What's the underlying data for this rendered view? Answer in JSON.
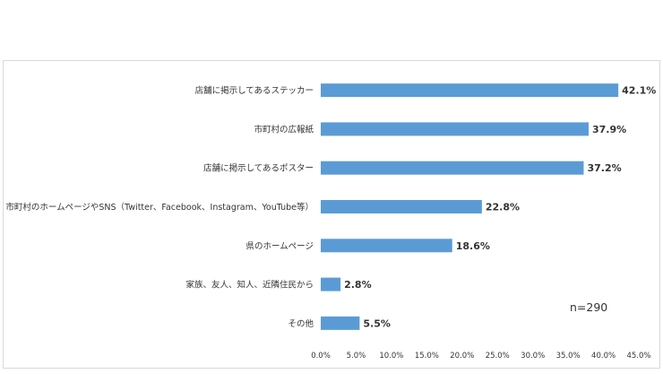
{
  "chart_data": {
    "type": "bar",
    "orientation": "horizontal",
    "title": "",
    "xlabel": "",
    "ylabel": "",
    "categories": [
      "店舗に掲示してあるステッカー",
      "市町村の広報紙",
      "店舗に掲示してあるポスター",
      "市町村のホームページやSNS（Twitter、Facebook、Instagram、YouTube等）",
      "県のホームページ",
      "家族、友人、知人、近隣住民から",
      "その他"
    ],
    "values": [
      42.1,
      37.9,
      37.2,
      22.8,
      18.6,
      2.8,
      5.5
    ],
    "value_labels": [
      "42.1%",
      "37.9%",
      "37.2%",
      "22.8%",
      "18.6%",
      "2.8%",
      "5.5%"
    ],
    "xlim": [
      0,
      45
    ],
    "xticks": [
      0,
      5,
      10,
      15,
      20,
      25,
      30,
      35,
      40,
      45
    ],
    "xtick_labels": [
      "0.0%",
      "5.0%",
      "10.0%",
      "15.0%",
      "20.0%",
      "25.0%",
      "30.0%",
      "35.0%",
      "40.0%",
      "45.0%"
    ],
    "grid": false,
    "legend": "none",
    "bar_color": "#5b9bd5",
    "annotation": "n=290"
  }
}
